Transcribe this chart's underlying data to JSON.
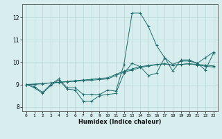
{
  "title": "",
  "xlabel": "Humidex (Indice chaleur)",
  "background_color": "#d8eeee",
  "line_color": "#1e6b6b",
  "grid_color": "#b8d8d8",
  "xlim": [
    -0.5,
    23.5
  ],
  "ylim": [
    7.8,
    12.6
  ],
  "xticks": [
    0,
    1,
    2,
    3,
    4,
    5,
    6,
    7,
    8,
    9,
    10,
    11,
    12,
    13,
    14,
    15,
    16,
    17,
    18,
    19,
    20,
    21,
    22,
    23
  ],
  "yticks": [
    8,
    9,
    10,
    11,
    12
  ],
  "series": [
    [
      9.0,
      8.9,
      8.65,
      9.0,
      9.25,
      8.85,
      8.85,
      8.55,
      8.55,
      8.55,
      8.75,
      8.7,
      9.9,
      12.2,
      12.2,
      11.6,
      10.75,
      10.2,
      9.6,
      10.1,
      10.1,
      9.95,
      9.65,
      10.4
    ],
    [
      9.0,
      8.85,
      8.6,
      8.95,
      9.2,
      8.8,
      8.75,
      8.25,
      8.25,
      8.5,
      8.55,
      8.6,
      9.5,
      9.95,
      9.8,
      9.4,
      9.5,
      10.2,
      9.9,
      10.05,
      10.05,
      9.95,
      10.2,
      10.45
    ],
    [
      9.0,
      9.0,
      9.03,
      9.07,
      9.1,
      9.13,
      9.17,
      9.2,
      9.23,
      9.27,
      9.3,
      9.45,
      9.6,
      9.7,
      9.8,
      9.85,
      9.9,
      9.93,
      9.87,
      9.9,
      9.93,
      9.9,
      9.87,
      9.83
    ],
    [
      9.0,
      9.02,
      9.04,
      9.07,
      9.09,
      9.12,
      9.14,
      9.17,
      9.19,
      9.22,
      9.25,
      9.4,
      9.55,
      9.65,
      9.75,
      9.83,
      9.88,
      9.93,
      9.86,
      9.9,
      9.93,
      9.87,
      9.82,
      9.78
    ]
  ]
}
